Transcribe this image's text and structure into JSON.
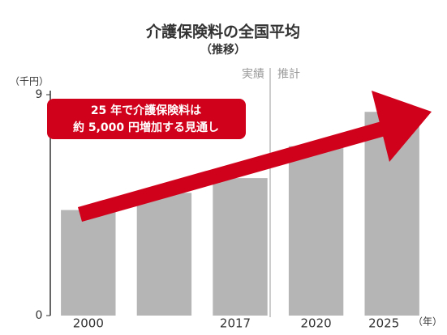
{
  "chart_data": {
    "type": "bar",
    "title": "介護保険料の全国平均",
    "subtitle": "（推移）",
    "y_unit": "（千円）",
    "x_unit": "（年）",
    "categories": [
      "2000",
      null,
      "2017",
      "2020",
      "2025"
    ],
    "values": [
      4.3,
      5.0,
      5.6,
      6.9,
      8.3
    ],
    "color": "#b5b5b5",
    "ylim": [
      0,
      9
    ],
    "yticks": [
      0,
      9
    ],
    "period_labels": [
      "実績",
      "推計"
    ],
    "annotation": [
      "25 年で介護保険料は",
      "約 5,000 円増加する見通し"
    ]
  }
}
